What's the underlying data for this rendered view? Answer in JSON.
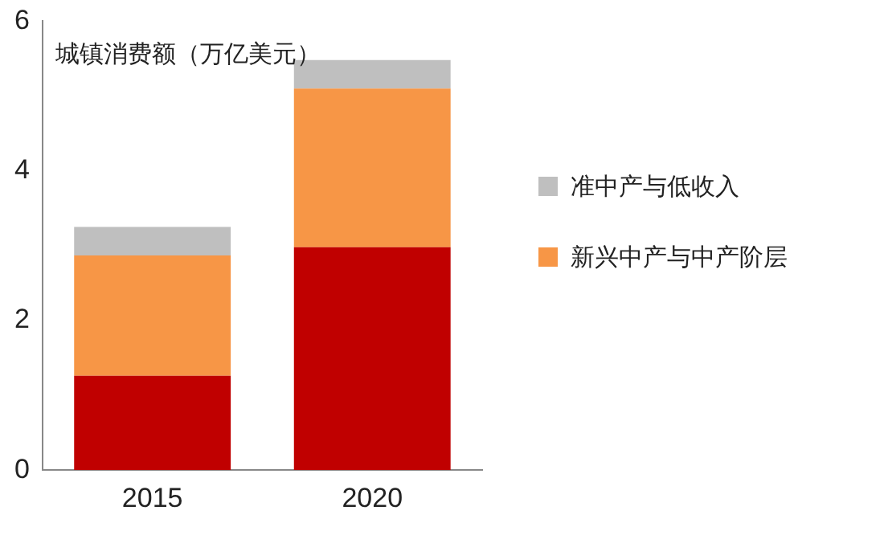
{
  "chart_data": {
    "type": "bar",
    "title": "城镇消费额（万亿美元）",
    "stacked": true,
    "categories": [
      "2015",
      "2020"
    ],
    "series": [
      {
        "color": "#c00000",
        "values": [
          1.26,
          2.98
        ]
      },
      {
        "name": "新兴中产与中产阶层",
        "color": "#f79646",
        "values": [
          1.61,
          2.12
        ]
      },
      {
        "name": "准中产与低收入",
        "color": "#bfbfbf",
        "values": [
          0.38,
          0.38
        ]
      }
    ],
    "ylim": [
      0,
      6
    ],
    "yticks": [
      0,
      2,
      4,
      6
    ],
    "grid": false,
    "legend": "right"
  }
}
